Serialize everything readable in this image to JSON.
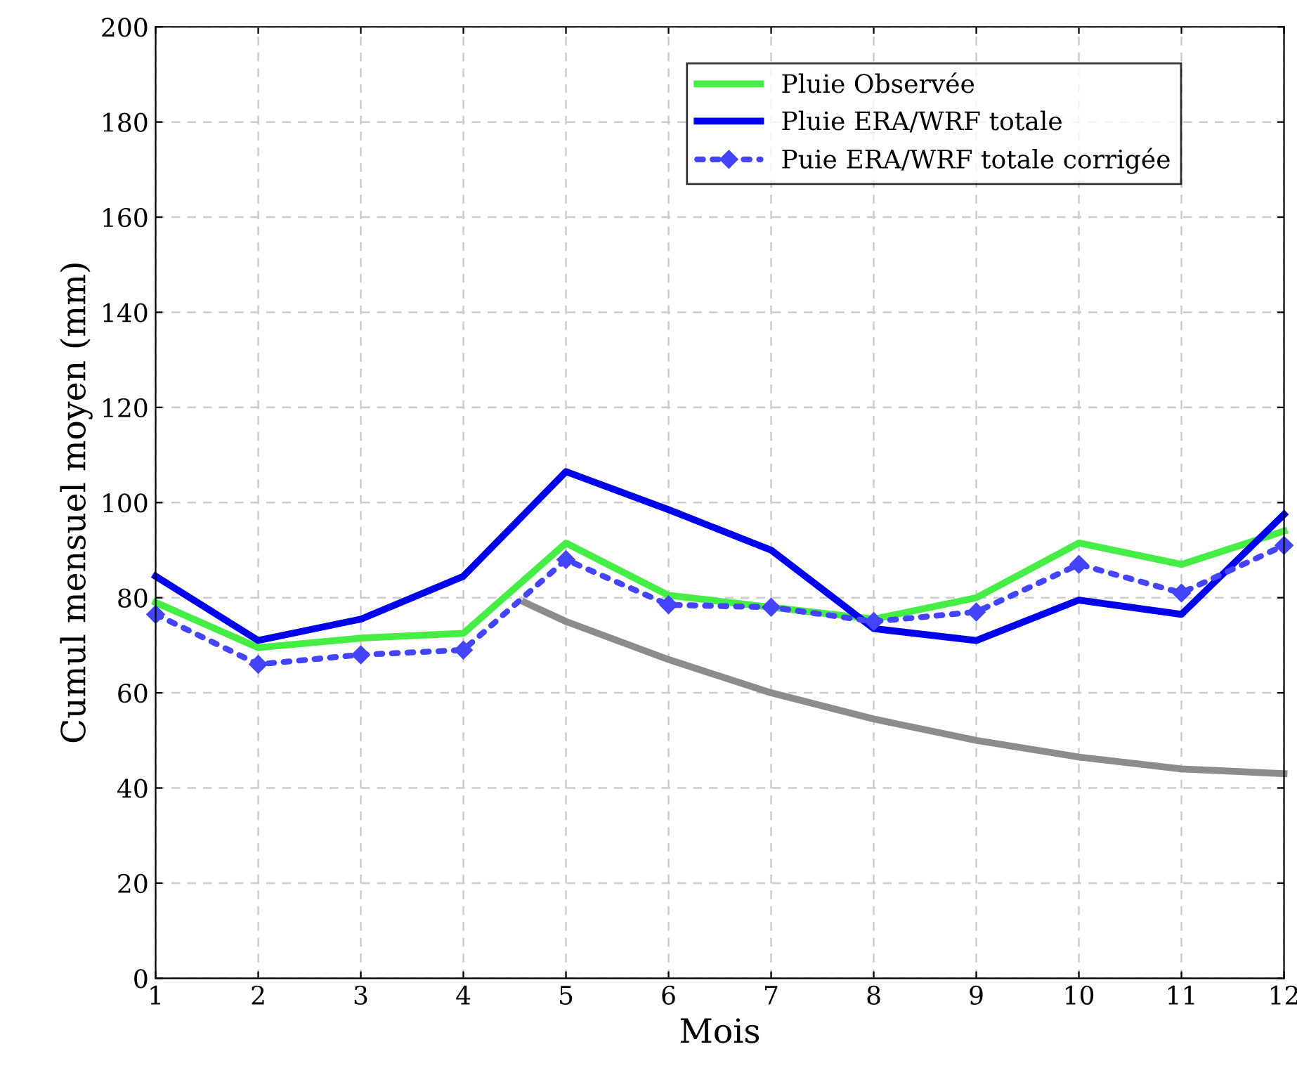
{
  "chart_data": {
    "type": "line",
    "xlabel": "Mois",
    "ylabel": "Cumul mensuel moyen (mm)",
    "x": [
      1,
      2,
      3,
      4,
      5,
      6,
      7,
      8,
      9,
      10,
      11,
      12
    ],
    "series": [
      {
        "name": "Pluie Observée",
        "color": "#44ee44",
        "values": [
          79,
          69.5,
          71.5,
          72.5,
          91.5,
          80.5,
          78,
          75.5,
          80,
          91.5,
          87,
          94
        ]
      },
      {
        "name": "Pluie ERA/WRF totale",
        "color": "#0000ee",
        "values": [
          84.5,
          71,
          75.5,
          84.5,
          106.5,
          98.5,
          90,
          73.5,
          71,
          79.5,
          76.5,
          97.5
        ]
      },
      {
        "name": "Puie ERA/WRF totale corrigée",
        "color": "#4444ff",
        "line_style": "dotted",
        "marker": "diamond",
        "values": [
          76.5,
          66,
          68,
          69,
          88,
          78.5,
          78,
          75,
          77,
          87,
          81,
          91
        ]
      },
      {
        "color": "#8c8c8c",
        "x": [
          4.6,
          5,
          6,
          7,
          8,
          9,
          10,
          11,
          12
        ],
        "values": [
          79,
          75,
          67,
          60,
          54.5,
          50,
          46.5,
          44,
          43
        ]
      }
    ],
    "xlim": [
      1,
      12
    ],
    "xticks": [
      1,
      2,
      3,
      4,
      5,
      6,
      7,
      8,
      9,
      10,
      11,
      12
    ],
    "ylim": [
      0,
      200
    ],
    "yticks": [
      0,
      20,
      40,
      60,
      80,
      100,
      120,
      140,
      160,
      180,
      200
    ],
    "grid": true,
    "legend": "top right",
    "marker": "none",
    "line_style": "solid"
  }
}
